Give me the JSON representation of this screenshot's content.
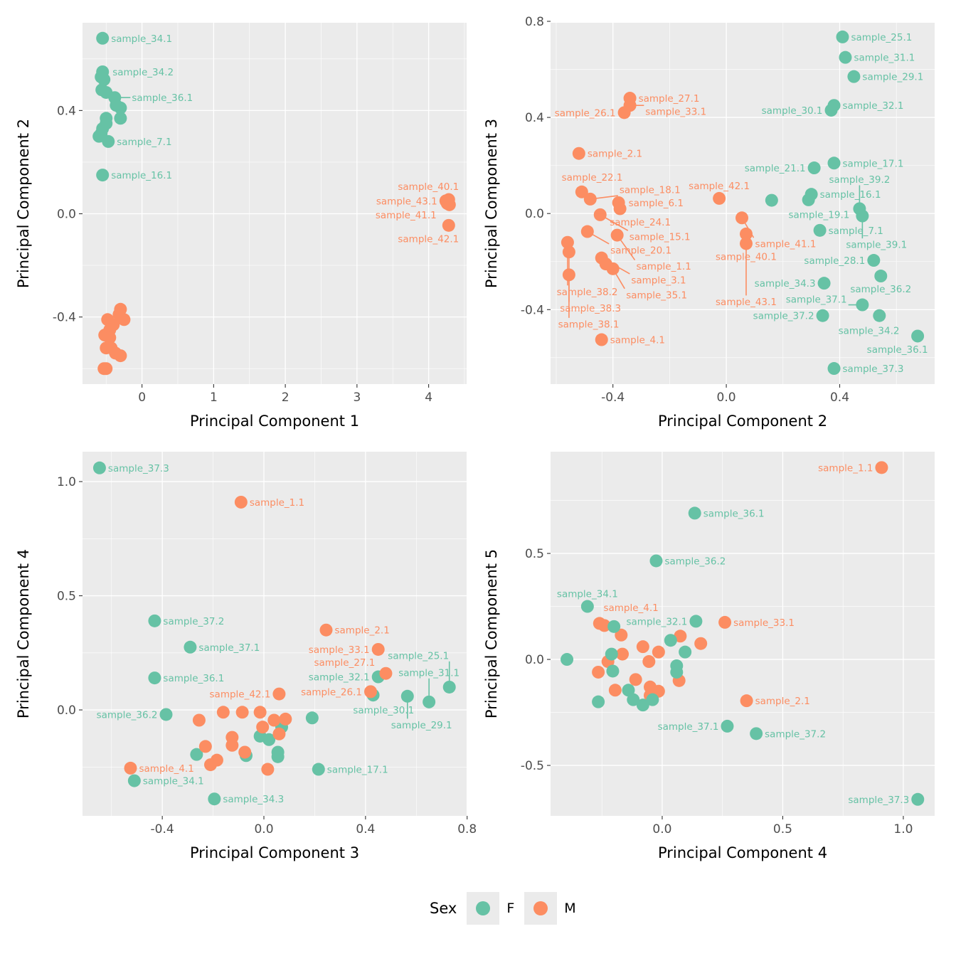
{
  "legend": {
    "title": "Sex",
    "items": [
      {
        "label": "F",
        "color": "#66C2A5"
      },
      {
        "label": "M",
        "color": "#FC8D62"
      }
    ]
  },
  "chart_data": [
    {
      "type": "scatter",
      "xlabel": "Principal Component 1",
      "ylabel": "Principal Component 2",
      "xlim": [
        -0.83,
        4.53
      ],
      "ylim": [
        -0.66,
        0.74
      ],
      "xticks": [
        {
          "v": 0,
          "t": "0"
        },
        {
          "v": 1,
          "t": "1"
        },
        {
          "v": 2,
          "t": "2"
        },
        {
          "v": 3,
          "t": "3"
        },
        {
          "v": 4,
          "t": "4"
        }
      ],
      "yticks": [
        {
          "v": -0.4,
          "t": "-0.4"
        },
        {
          "v": 0,
          "t": "0.0"
        },
        {
          "v": 0.4,
          "t": "0.4"
        }
      ],
      "grid": true,
      "points": [
        [
          -0.55,
          0.68,
          "F",
          "sample_34.1"
        ],
        [
          -0.55,
          0.55,
          "F",
          "sample_34.2"
        ],
        [
          -0.57,
          0.53,
          "F",
          ""
        ],
        [
          -0.53,
          0.52,
          "F",
          ""
        ],
        [
          -0.56,
          0.48,
          "F",
          ""
        ],
        [
          -0.5,
          0.47,
          "F",
          ""
        ],
        [
          -0.38,
          0.45,
          "F",
          "sample_36.1"
        ],
        [
          -0.36,
          0.42,
          "F",
          ""
        ],
        [
          -0.3,
          0.41,
          "F",
          ""
        ],
        [
          -0.3,
          0.37,
          "F",
          ""
        ],
        [
          -0.5,
          0.37,
          "F",
          ""
        ],
        [
          -0.5,
          0.35,
          "F",
          ""
        ],
        [
          -0.55,
          0.33,
          "F",
          ""
        ],
        [
          -0.57,
          0.31,
          "F",
          ""
        ],
        [
          -0.6,
          0.3,
          "F",
          ""
        ],
        [
          -0.47,
          0.28,
          "F",
          "sample_7.1"
        ],
        [
          -0.55,
          0.15,
          "F",
          "sample_16.1"
        ],
        [
          -0.3,
          -0.37,
          "M",
          ""
        ],
        [
          -0.32,
          -0.39,
          "M",
          ""
        ],
        [
          -0.25,
          -0.41,
          "M",
          ""
        ],
        [
          -0.48,
          -0.41,
          "M",
          ""
        ],
        [
          -0.4,
          -0.43,
          "M",
          ""
        ],
        [
          -0.45,
          -0.45,
          "M",
          ""
        ],
        [
          -0.52,
          -0.47,
          "M",
          ""
        ],
        [
          -0.45,
          -0.48,
          "M",
          ""
        ],
        [
          -0.43,
          -0.52,
          "M",
          ""
        ],
        [
          -0.5,
          -0.52,
          "M",
          ""
        ],
        [
          -0.37,
          -0.54,
          "M",
          ""
        ],
        [
          -0.3,
          -0.55,
          "M",
          ""
        ],
        [
          -0.5,
          -0.6,
          "M",
          ""
        ],
        [
          -0.53,
          -0.6,
          "M",
          ""
        ],
        [
          4.28,
          0.055,
          "M",
          "sample_40.1"
        ],
        [
          4.24,
          0.05,
          "M",
          "sample_43.1"
        ],
        [
          4.26,
          0.04,
          "M",
          "sample_41.1"
        ],
        [
          4.29,
          0.035,
          "M",
          ""
        ],
        [
          4.28,
          -0.045,
          "M",
          "sample_42.1"
        ]
      ]
    },
    {
      "type": "scatter",
      "xlabel": "Principal Component 2",
      "ylabel": "Principal Component 3",
      "xlim": [
        -0.62,
        0.735
      ],
      "ylim": [
        -0.71,
        0.794
      ],
      "xticks": [
        {
          "v": -0.4,
          "t": "-0.4"
        },
        {
          "v": 0,
          "t": "0.0"
        },
        {
          "v": 0.4,
          "t": "0.4"
        }
      ],
      "yticks": [
        {
          "v": -0.4,
          "t": "-0.4"
        },
        {
          "v": 0,
          "t": "0.0"
        },
        {
          "v": 0.4,
          "t": "0.4"
        },
        {
          "v": 0.8,
          "t": "0.8"
        }
      ],
      "grid": true,
      "points": [
        [
          0.41,
          0.735,
          "F",
          "sample_25.1"
        ],
        [
          0.42,
          0.65,
          "F",
          "sample_31.1"
        ],
        [
          0.45,
          0.57,
          "F",
          "sample_29.1"
        ],
        [
          0.38,
          0.45,
          "F",
          "sample_32.1"
        ],
        [
          0.37,
          0.43,
          "F",
          "sample_30.1"
        ],
        [
          0.38,
          0.21,
          "F",
          "sample_17.1"
        ],
        [
          0.31,
          0.19,
          "F",
          "sample_21.1"
        ],
        [
          0.3,
          0.08,
          "F",
          "sample_16.1"
        ],
        [
          0.29,
          0.057,
          "F",
          "sample_19.1"
        ],
        [
          0.16,
          0.055,
          "F",
          ""
        ],
        [
          0.33,
          -0.07,
          "F",
          "sample_7.1"
        ],
        [
          0.47,
          0.02,
          "F",
          "sample_39.2"
        ],
        [
          0.48,
          -0.01,
          "F",
          "sample_39.1"
        ],
        [
          0.52,
          -0.195,
          "F",
          "sample_28.1"
        ],
        [
          0.545,
          -0.26,
          "F",
          "sample_36.2"
        ],
        [
          0.345,
          -0.29,
          "F",
          "sample_34.3"
        ],
        [
          0.48,
          -0.38,
          "F",
          "sample_37.1"
        ],
        [
          0.54,
          -0.425,
          "F",
          "sample_34.2"
        ],
        [
          0.34,
          -0.425,
          "F",
          "sample_37.2"
        ],
        [
          0.675,
          -0.51,
          "F",
          "sample_36.1"
        ],
        [
          0.38,
          -0.645,
          "F",
          "sample_37.3"
        ],
        [
          -0.34,
          0.48,
          "M",
          "sample_27.1"
        ],
        [
          -0.34,
          0.45,
          "M",
          "sample_33.1"
        ],
        [
          -0.36,
          0.42,
          "M",
          "sample_26.1"
        ],
        [
          -0.52,
          0.25,
          "M",
          "sample_2.1"
        ],
        [
          -0.51,
          0.09,
          "M",
          "sample_22.1"
        ],
        [
          -0.48,
          0.06,
          "M",
          "sample_18.1"
        ],
        [
          -0.38,
          0.045,
          "M",
          "sample_6.1"
        ],
        [
          -0.375,
          0.02,
          "M",
          "sample_24.1"
        ],
        [
          -0.445,
          -0.005,
          "M",
          "sample_15.1"
        ],
        [
          -0.49,
          -0.075,
          "M",
          "sample_20.1"
        ],
        [
          -0.385,
          -0.09,
          "M",
          "sample_1.1"
        ],
        [
          -0.56,
          -0.12,
          "M",
          "sample_38.2"
        ],
        [
          -0.555,
          -0.16,
          "M",
          "sample_38.3"
        ],
        [
          -0.44,
          -0.185,
          "M",
          "sample_3.1"
        ],
        [
          -0.425,
          -0.21,
          "M",
          ""
        ],
        [
          -0.4,
          -0.23,
          "M",
          "sample_35.1"
        ],
        [
          -0.555,
          -0.255,
          "M",
          "sample_38.1"
        ],
        [
          -0.44,
          -0.525,
          "M",
          "sample_4.1"
        ],
        [
          -0.025,
          0.063,
          "M",
          "sample_42.1"
        ],
        [
          0.055,
          -0.018,
          "M",
          "sample_41.1"
        ],
        [
          0.07,
          -0.085,
          "M",
          "sample_40.1"
        ],
        [
          0.07,
          -0.125,
          "M",
          "sample_43.1"
        ]
      ]
    },
    {
      "type": "scatter",
      "xlabel": "Principal Component 3",
      "ylabel": "Principal Component 4",
      "xlim": [
        -0.714,
        0.798
      ],
      "ylim": [
        -0.464,
        1.131
      ],
      "xticks": [
        {
          "v": -0.4,
          "t": "-0.4"
        },
        {
          "v": 0,
          "t": "0.0"
        },
        {
          "v": 0.4,
          "t": "0.4"
        },
        {
          "v": 0.8,
          "t": "0.8"
        }
      ],
      "yticks": [
        {
          "v": 0,
          "t": "0.0"
        },
        {
          "v": 0.5,
          "t": "0.5"
        },
        {
          "v": 1.0,
          "t": "1.0"
        }
      ],
      "grid": true,
      "points": [
        [
          -0.647,
          1.06,
          "F",
          "sample_37.3"
        ],
        [
          -0.43,
          0.39,
          "F",
          "sample_37.2"
        ],
        [
          -0.29,
          0.275,
          "F",
          "sample_37.1"
        ],
        [
          -0.43,
          0.14,
          "F",
          "sample_36.1"
        ],
        [
          -0.385,
          -0.02,
          "F",
          "sample_36.2"
        ],
        [
          -0.51,
          -0.31,
          "F",
          "sample_34.1"
        ],
        [
          -0.195,
          -0.39,
          "F",
          "sample_34.3"
        ],
        [
          -0.265,
          -0.195,
          "F",
          ""
        ],
        [
          -0.07,
          -0.2,
          "F",
          ""
        ],
        [
          -0.015,
          -0.115,
          "F",
          ""
        ],
        [
          0.02,
          -0.13,
          "F",
          ""
        ],
        [
          0.055,
          -0.185,
          "F",
          ""
        ],
        [
          0.055,
          -0.205,
          "F",
          ""
        ],
        [
          0.07,
          -0.075,
          "F",
          ""
        ],
        [
          0.19,
          -0.035,
          "F",
          ""
        ],
        [
          0.215,
          -0.26,
          "F",
          "sample_17.1"
        ],
        [
          0.45,
          0.145,
          "F",
          "sample_32.1"
        ],
        [
          0.43,
          0.065,
          "F",
          "sample_30.1"
        ],
        [
          0.565,
          0.06,
          "F",
          "sample_29.1"
        ],
        [
          0.65,
          0.035,
          "F",
          "sample_31.1"
        ],
        [
          0.73,
          0.1,
          "F",
          "sample_25.1"
        ],
        [
          -0.09,
          0.91,
          "M",
          "sample_1.1"
        ],
        [
          0.245,
          0.35,
          "M",
          "sample_2.1"
        ],
        [
          0.45,
          0.265,
          "M",
          "sample_33.1"
        ],
        [
          0.48,
          0.16,
          "M",
          "sample_27.1"
        ],
        [
          0.42,
          0.08,
          "M",
          "sample_26.1"
        ],
        [
          0.06,
          0.07,
          "M",
          "sample_42.1"
        ],
        [
          -0.525,
          -0.255,
          "M",
          "sample_4.1"
        ],
        [
          -0.255,
          -0.045,
          "M",
          ""
        ],
        [
          -0.16,
          -0.01,
          "M",
          ""
        ],
        [
          -0.085,
          -0.01,
          "M",
          ""
        ],
        [
          -0.015,
          -0.01,
          "M",
          ""
        ],
        [
          -0.005,
          -0.075,
          "M",
          ""
        ],
        [
          0.04,
          -0.045,
          "M",
          ""
        ],
        [
          0.085,
          -0.04,
          "M",
          ""
        ],
        [
          0.06,
          -0.105,
          "M",
          ""
        ],
        [
          -0.125,
          -0.12,
          "M",
          ""
        ],
        [
          -0.125,
          -0.155,
          "M",
          ""
        ],
        [
          -0.23,
          -0.16,
          "M",
          ""
        ],
        [
          -0.075,
          -0.185,
          "M",
          ""
        ],
        [
          -0.185,
          -0.22,
          "M",
          ""
        ],
        [
          -0.21,
          -0.24,
          "M",
          ""
        ],
        [
          0.015,
          -0.26,
          "M",
          ""
        ]
      ]
    },
    {
      "type": "scatter",
      "xlabel": "Principal Component 4",
      "ylabel": "Principal Component 5",
      "xlim": [
        -0.463,
        1.13
      ],
      "ylim": [
        -0.738,
        0.98
      ],
      "xticks": [
        {
          "v": 0,
          "t": "0.0"
        },
        {
          "v": 0.5,
          "t": "0.5"
        },
        {
          "v": 1.0,
          "t": "1.0"
        }
      ],
      "yticks": [
        {
          "v": -0.5,
          "t": "-0.5"
        },
        {
          "v": 0,
          "t": "0.0"
        },
        {
          "v": 0.5,
          "t": "0.5"
        }
      ],
      "grid": true,
      "points": [
        [
          0.91,
          0.905,
          "M",
          "sample_1.1"
        ],
        [
          0.26,
          0.175,
          "M",
          "sample_33.1"
        ],
        [
          0.35,
          -0.195,
          "M",
          "sample_2.1"
        ],
        [
          -0.26,
          0.17,
          "M",
          "sample_4.1"
        ],
        [
          -0.24,
          0.16,
          "M",
          ""
        ],
        [
          -0.17,
          0.115,
          "M",
          ""
        ],
        [
          0.075,
          0.11,
          "M",
          ""
        ],
        [
          0.16,
          0.075,
          "M",
          ""
        ],
        [
          -0.08,
          0.06,
          "M",
          ""
        ],
        [
          -0.015,
          0.035,
          "M",
          ""
        ],
        [
          -0.165,
          0.025,
          "M",
          ""
        ],
        [
          -0.225,
          -0.01,
          "M",
          ""
        ],
        [
          -0.055,
          -0.01,
          "M",
          ""
        ],
        [
          -0.265,
          -0.06,
          "M",
          ""
        ],
        [
          0.07,
          -0.1,
          "M",
          ""
        ],
        [
          -0.11,
          -0.095,
          "M",
          ""
        ],
        [
          -0.05,
          -0.13,
          "M",
          ""
        ],
        [
          -0.015,
          -0.15,
          "M",
          ""
        ],
        [
          -0.195,
          -0.145,
          "M",
          ""
        ],
        [
          -0.05,
          -0.17,
          "M",
          ""
        ],
        [
          0.135,
          0.69,
          "F",
          "sample_36.1"
        ],
        [
          -0.025,
          0.465,
          "F",
          "sample_36.2"
        ],
        [
          -0.31,
          0.25,
          "F",
          "sample_34.1"
        ],
        [
          0.14,
          0.18,
          "F",
          "sample_32.1"
        ],
        [
          -0.2,
          0.155,
          "F",
          ""
        ],
        [
          0.035,
          0.09,
          "F",
          ""
        ],
        [
          0.095,
          0.035,
          "F",
          ""
        ],
        [
          -0.21,
          0.025,
          "F",
          ""
        ],
        [
          -0.395,
          0.0,
          "F",
          ""
        ],
        [
          0.06,
          -0.03,
          "F",
          ""
        ],
        [
          0.06,
          -0.06,
          "F",
          ""
        ],
        [
          -0.205,
          -0.055,
          "F",
          ""
        ],
        [
          -0.14,
          -0.145,
          "F",
          ""
        ],
        [
          -0.12,
          -0.19,
          "F",
          ""
        ],
        [
          -0.08,
          -0.215,
          "F",
          ""
        ],
        [
          -0.04,
          -0.19,
          "F",
          ""
        ],
        [
          -0.265,
          -0.2,
          "F",
          ""
        ],
        [
          0.27,
          -0.315,
          "F",
          "sample_37.1"
        ],
        [
          0.39,
          -0.35,
          "F",
          "sample_37.2"
        ],
        [
          1.06,
          -0.66,
          "F",
          "sample_37.3"
        ]
      ]
    }
  ]
}
